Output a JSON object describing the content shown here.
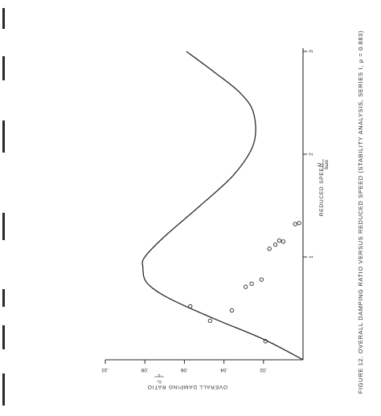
{
  "page": {
    "paper_color": "#ffffff",
    "ink_color": "#2a2a2a"
  },
  "chart_data": {
    "type": "scatter",
    "orientation": "rotated 90 degrees counter-clockwise",
    "caption": "FIGURE 12.  OVERALL DAMPING RATIO VERSUS REDUCED SPEED (STABILITY ANALYSIS, SERIES I, μ = 0.883)",
    "xlabel": "REDUCED SPEED",
    "xlabel_fraction": {
      "numerator": "U",
      "denominator": "bωα"
    },
    "ylabel": "OVERALL DAMPING RATIO",
    "ylabel_fraction": {
      "numerator": "c",
      "denominator": "c₀"
    },
    "xlim": [
      0,
      3
    ],
    "ylim": [
      0,
      0.1
    ],
    "x_ticks": [
      "1",
      "2",
      "3"
    ],
    "y_ticks": [
      ".02",
      ".04",
      ".06",
      ".08",
      ".10"
    ],
    "grid": false,
    "series": [
      {
        "kind": "line",
        "x": [
          0.0,
          0.2,
          0.4,
          0.6,
          0.75,
          0.9,
          1.0,
          1.2,
          1.5,
          1.8,
          2.1,
          2.4,
          2.6,
          2.8,
          3.0
        ],
        "y": [
          0.0,
          0.02,
          0.045,
          0.068,
          0.079,
          0.081,
          0.08,
          0.07,
          0.052,
          0.035,
          0.025,
          0.025,
          0.032,
          0.045,
          0.059
        ]
      },
      {
        "kind": "points",
        "x": [
          0.18,
          0.38,
          0.48,
          0.52,
          0.71,
          0.74,
          0.78,
          1.08,
          1.12,
          1.15,
          1.16,
          1.32,
          1.33
        ],
        "y": [
          0.019,
          0.047,
          0.036,
          0.057,
          0.029,
          0.026,
          0.021,
          0.017,
          0.014,
          0.01,
          0.012,
          0.004,
          0.002
        ]
      }
    ]
  }
}
